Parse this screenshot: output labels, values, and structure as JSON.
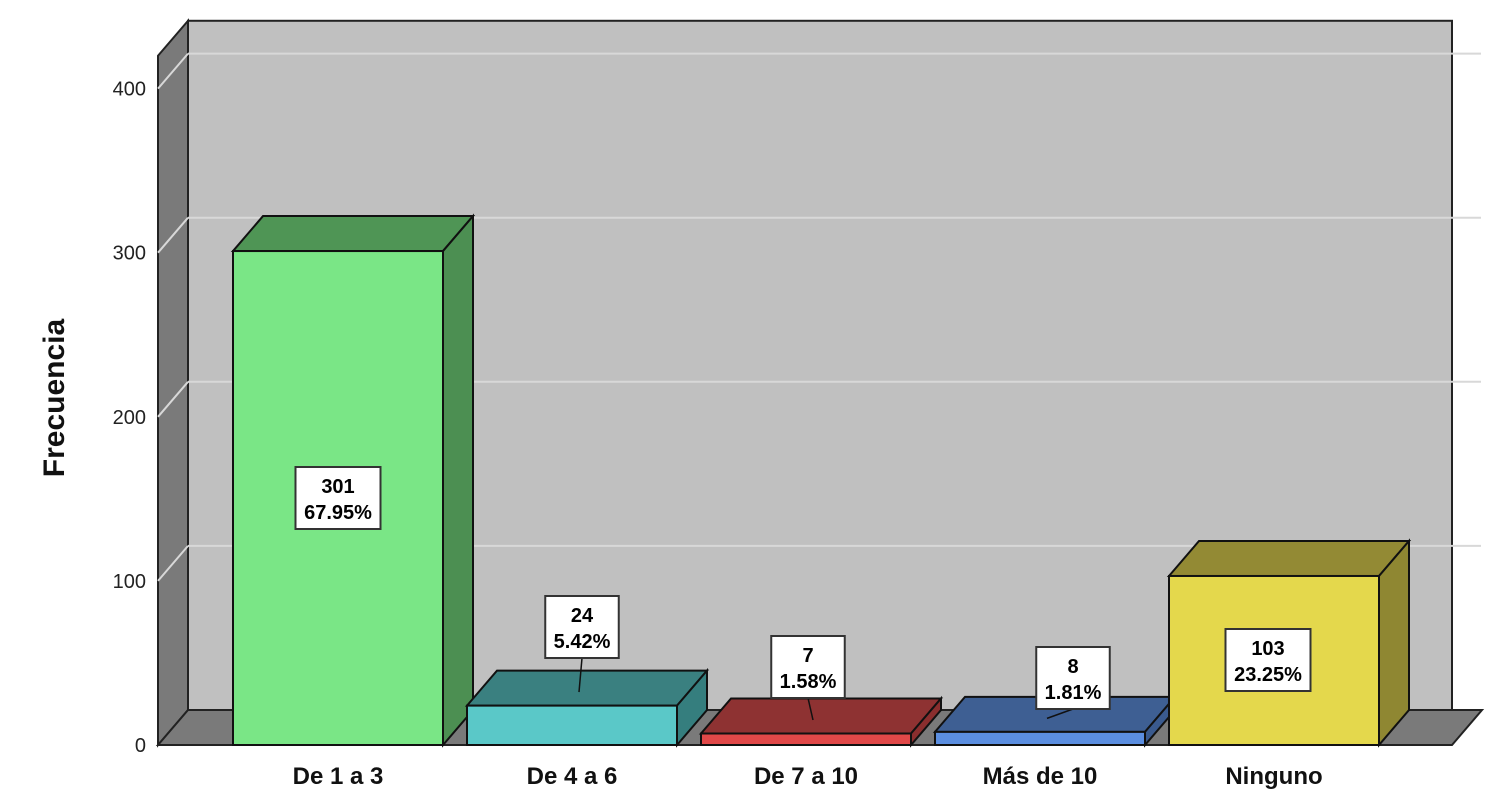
{
  "chart_data": {
    "type": "bar",
    "title": "",
    "xlabel": "",
    "ylabel": "Frecuencia",
    "ylim": [
      0,
      420
    ],
    "yticks": [
      "0",
      "100",
      "200",
      "300",
      "400"
    ],
    "grid": true,
    "categories": [
      "De 1 a 3",
      "De 4 a 6",
      "De 7 a 10",
      "Más de 10",
      "Ninguno"
    ],
    "values": [
      301,
      24,
      7,
      8,
      103
    ],
    "data_labels": [
      {
        "count": "301",
        "percent": "67.95%"
      },
      {
        "count": "24",
        "percent": "5.42%"
      },
      {
        "count": "7",
        "percent": "1.58%"
      },
      {
        "count": "8",
        "percent": "1.81%"
      },
      {
        "count": "103",
        "percent": "23.25%"
      }
    ],
    "colors": [
      {
        "front": "#7ae686",
        "side": "#4c8f52",
        "top": "#4f9555"
      },
      {
        "front": "#5ac8c8",
        "side": "#357e7e",
        "top": "#3a8080"
      },
      {
        "front": "#e04848",
        "side": "#8a2e2e",
        "top": "#8e3232"
      },
      {
        "front": "#5b8ee0",
        "side": "#3a5a8e",
        "top": "#3e5f93"
      },
      {
        "front": "#e4d84c",
        "side": "#8f8732",
        "top": "#938a34"
      }
    ],
    "panel_color": "#c0c0c0",
    "wall_color": "#7a7a7a"
  }
}
